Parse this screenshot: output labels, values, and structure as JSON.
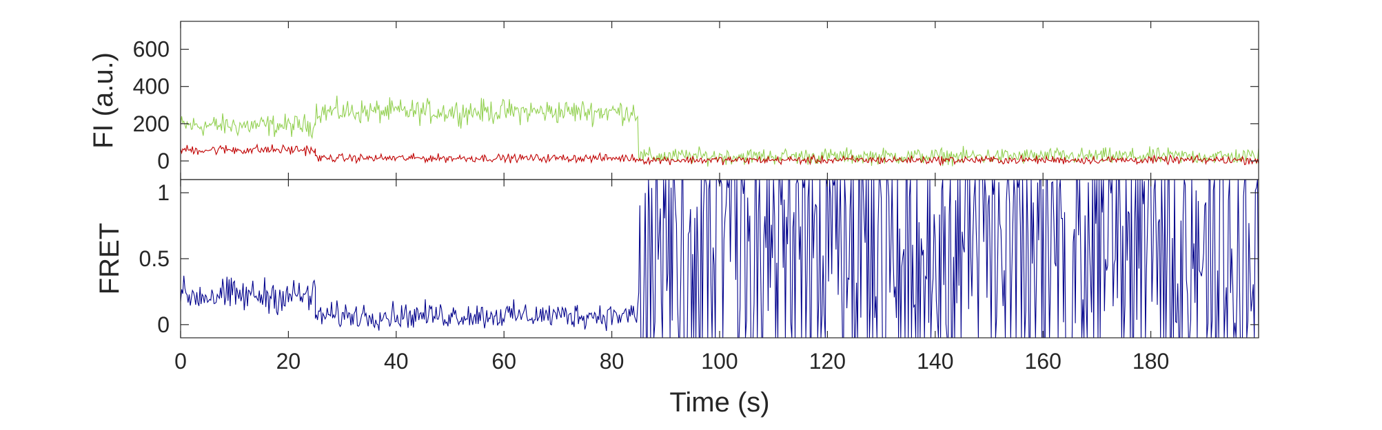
{
  "chart_data": [
    {
      "type": "line",
      "ylabel": "FI (a.u.)",
      "xlabel": "",
      "xlim": [
        0,
        200
      ],
      "ylim": [
        -100,
        750
      ],
      "yticks": [
        0,
        200,
        400,
        600
      ],
      "grid": false,
      "series": [
        {
          "color": "#92d050",
          "segments": [
            {
              "x_range": [
                0,
                25
              ],
              "mean": 190,
              "noise": 55
            },
            {
              "x_range": [
                25,
                85
              ],
              "mean": 265,
              "noise": 60
            },
            {
              "x_range": [
                85,
                200
              ],
              "mean": 25,
              "noise": 40
            }
          ]
        },
        {
          "color": "#c00000",
          "segments": [
            {
              "x_range": [
                0,
                25
              ],
              "mean": 60,
              "noise": 25
            },
            {
              "x_range": [
                25,
                85
              ],
              "mean": 15,
              "noise": 20
            },
            {
              "x_range": [
                85,
                200
              ],
              "mean": 5,
              "noise": 20
            }
          ]
        }
      ]
    },
    {
      "type": "line",
      "ylabel": "FRET",
      "xlabel": "Time (s)",
      "xlim": [
        0,
        200
      ],
      "ylim": [
        -0.1,
        1.1
      ],
      "yticks": [
        0,
        0.5,
        1
      ],
      "ytick_labels": [
        "0",
        "0.5",
        "1"
      ],
      "xticks": [
        0,
        20,
        40,
        60,
        80,
        100,
        120,
        140,
        160,
        180
      ],
      "xtick_labels": [
        "0",
        "20",
        "40",
        "60",
        "80",
        "100",
        "120",
        "140",
        "160",
        "180"
      ],
      "grid": false,
      "series": [
        {
          "color": "#00008b",
          "segments": [
            {
              "x_range": [
                0,
                25
              ],
              "mean": 0.22,
              "noise": 0.12
            },
            {
              "x_range": [
                25,
                85
              ],
              "mean": 0.07,
              "noise": 0.09
            },
            {
              "x_range": [
                85,
                200
              ],
              "mean": 0.5,
              "noise": 0.6
            }
          ]
        }
      ]
    }
  ]
}
